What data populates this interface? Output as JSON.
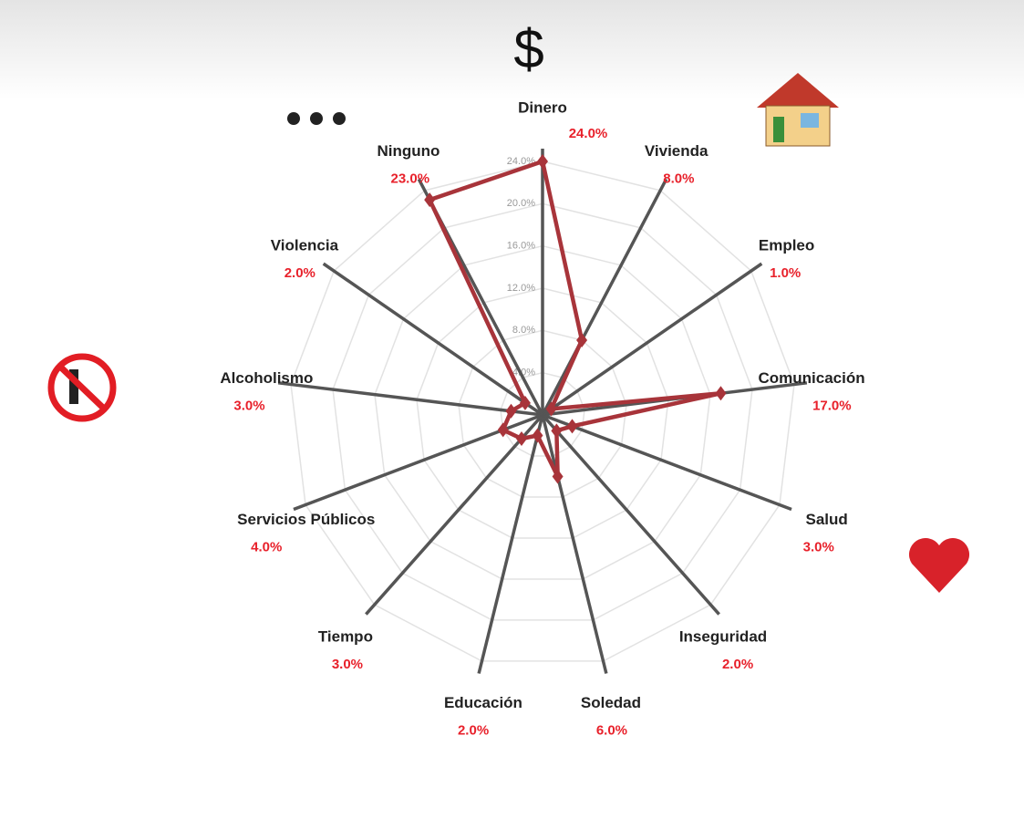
{
  "chart_data": {
    "type": "radar",
    "annotations": [
      "$"
    ],
    "categories": [
      "Dinero",
      "Vivienda",
      "Empleo",
      "Comunicación",
      "Salud",
      "Inseguridad",
      "Soledad",
      "Educación",
      "Tiempo",
      "Servicios Públicos",
      "Alcoholismo",
      "Violencia",
      "Ninguno"
    ],
    "series": [
      {
        "color": "#a8343a",
        "values": [
          24,
          8,
          1,
          17,
          3,
          2,
          6,
          2,
          3,
          4,
          3,
          2,
          23
        ],
        "value_labels": [
          "24.0%",
          "8.0%",
          "1.0%",
          "17.0%",
          "3.0%",
          "2.0%",
          "6.0%",
          "2.0%",
          "3.0%",
          "4.0%",
          "3.0%",
          "2.0%",
          "23.0%"
        ]
      }
    ],
    "rlim": [
      0,
      24
    ],
    "rticks": [
      {
        "value": 4,
        "label": "4.0%"
      },
      {
        "value": 8,
        "label": "8.0%"
      },
      {
        "value": 12,
        "label": "12.0%"
      },
      {
        "value": 16,
        "label": "16.0%"
      },
      {
        "value": 20,
        "label": "20.0%"
      },
      {
        "value": 24,
        "label": "24.0%"
      }
    ],
    "grid": true,
    "value_label_color": "#e8212b"
  }
}
